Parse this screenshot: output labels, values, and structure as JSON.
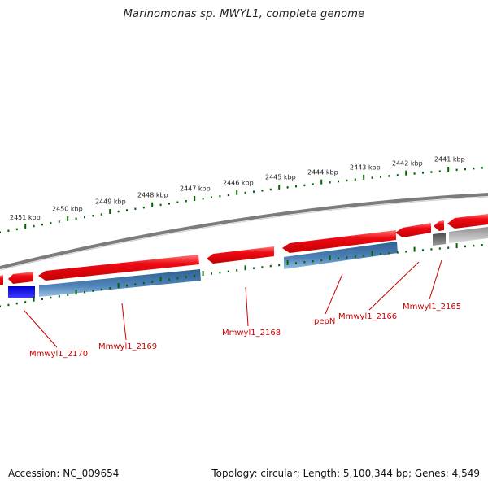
{
  "title": "Marinomonas sp. MWYL1, complete genome",
  "footer": {
    "accession": "Accession: NC_009654",
    "summary": "Topology: circular; Length: 5,100,344 bp; Genes: 4,549"
  },
  "kbp_ticks": [
    {
      "label": "2451 kbp"
    },
    {
      "label": "2450 kbp"
    },
    {
      "label": "2449 kbp"
    },
    {
      "label": "2448 kbp"
    },
    {
      "label": "2447 kbp"
    },
    {
      "label": "2446 kbp"
    },
    {
      "label": "2445 kbp"
    },
    {
      "label": "2444 kbp"
    },
    {
      "label": "2443 kbp"
    },
    {
      "label": "2442 kbp"
    },
    {
      "label": "2441 kbp"
    }
  ],
  "gene_labels": [
    {
      "label": "Mmwyl1_2170"
    },
    {
      "label": "Mmwyl1_2169"
    },
    {
      "label": "Mmwyl1_2168"
    },
    {
      "label": "pepN"
    },
    {
      "label": "Mmwyl1_2166"
    },
    {
      "label": "Mmwyl1_2165"
    }
  ],
  "colors": {
    "gene_red": "#e8001a",
    "gene_blue": "#4a7fb5",
    "gene_bright_blue": "#0000ee",
    "gene_gray": "#a8a8a8",
    "gene_dark_gray": "#6a6a6a",
    "backbone": "#808080",
    "tick_green": "#006600",
    "label_red": "#cc0000"
  }
}
